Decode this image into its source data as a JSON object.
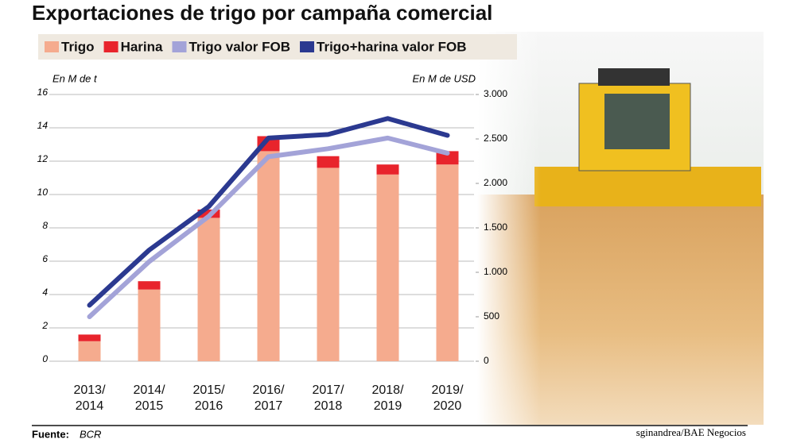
{
  "chart_data": {
    "type": "bar",
    "title": "Exportaciones de trigo por campaña comercial",
    "y_label": "En M de t",
    "y2_label": "En M de USD",
    "categories": [
      "2013/\n2014",
      "2014/\n2015",
      "2015/\n2016",
      "2016/\n2017",
      "2017/\n2018",
      "2018/\n2019",
      "2019/\n2020"
    ],
    "series": [
      {
        "name": "Trigo",
        "type": "bar",
        "color": "#f5ab8e",
        "values": [
          1.2,
          4.3,
          8.6,
          12.6,
          11.6,
          11.2,
          11.8
        ]
      },
      {
        "name": "Harina",
        "type": "bar",
        "color": "#e8242c",
        "values": [
          0.4,
          0.5,
          0.5,
          0.9,
          0.7,
          0.6,
          0.8
        ]
      },
      {
        "name": "Trigo valor FOB",
        "type": "line",
        "axis": "y2",
        "color": "#a3a3d8",
        "values": [
          500,
          1120,
          1630,
          2300,
          2390,
          2510,
          2340
        ]
      },
      {
        "name": "Trigo+harina valor FOB",
        "type": "line",
        "axis": "y2",
        "color": "#2b3990",
        "values": [
          630,
          1250,
          1740,
          2510,
          2550,
          2730,
          2540
        ]
      }
    ],
    "ylim": [
      0,
      16
    ],
    "yticks": [
      0,
      2,
      4,
      6,
      8,
      10,
      12,
      14,
      16
    ],
    "y2lim": [
      0,
      3000
    ],
    "y2ticks": [
      0,
      500,
      {
        "value": 1000,
        "label": "1.000"
      },
      {
        "value": 1500,
        "label": "1.500"
      },
      {
        "value": 2000,
        "label": "2.000"
      },
      {
        "value": 2500,
        "label": "2.500"
      },
      {
        "value": 3000,
        "label": "3.000"
      }
    ],
    "grid": true,
    "source_label": "Fuente:",
    "source": "BCR",
    "credit": "sginandrea/BAE Negocios"
  }
}
